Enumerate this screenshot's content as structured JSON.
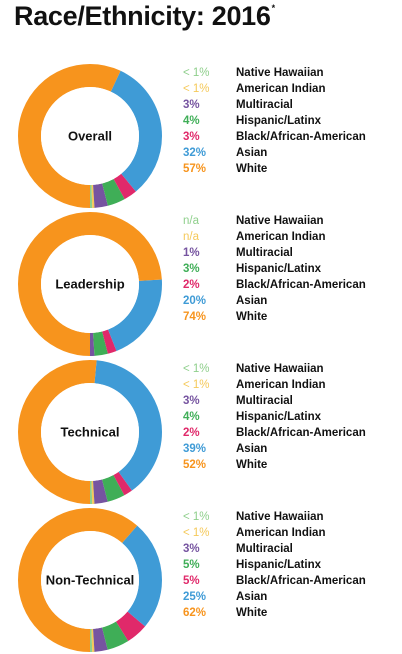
{
  "title": "Race/Ethnicity: 2016",
  "title_mark": "*",
  "colors": {
    "Native Hawaiian": "#8fcf8c",
    "American Indian": "#f5c95a",
    "Multiracial": "#7654a0",
    "Hispanic/Latinx": "#3fae57",
    "Black/African-American": "#e0296a",
    "Asian": "#3f9bd6",
    "White": "#f7941d"
  },
  "chart_data": [
    {
      "type": "pie",
      "center_label": "Overall",
      "categories": [
        "Native Hawaiian",
        "American Indian",
        "Multiracial",
        "Hispanic/Latinx",
        "Black/African-American",
        "Asian",
        "White"
      ],
      "labels": [
        "< 1%",
        "< 1%",
        "3%",
        "4%",
        "3%",
        "32%",
        "57%"
      ],
      "values": [
        0.5,
        0.5,
        3,
        4,
        3,
        32,
        57
      ]
    },
    {
      "type": "pie",
      "center_label": "Leadership",
      "categories": [
        "Native Hawaiian",
        "American Indian",
        "Multiracial",
        "Hispanic/Latinx",
        "Black/African-American",
        "Asian",
        "White"
      ],
      "labels": [
        "n/a",
        "n/a",
        "1%",
        "3%",
        "2%",
        "20%",
        "74%"
      ],
      "values": [
        0,
        0,
        1,
        3,
        2,
        20,
        74
      ]
    },
    {
      "type": "pie",
      "center_label": "Technical",
      "categories": [
        "Native Hawaiian",
        "American Indian",
        "Multiracial",
        "Hispanic/Latinx",
        "Black/African-American",
        "Asian",
        "White"
      ],
      "labels": [
        "< 1%",
        "< 1%",
        "3%",
        "4%",
        "2%",
        "39%",
        "52%"
      ],
      "values": [
        0.5,
        0.5,
        3,
        4,
        2,
        39,
        52
      ]
    },
    {
      "type": "pie",
      "center_label": "Non-Technical",
      "categories": [
        "Native Hawaiian",
        "American Indian",
        "Multiracial",
        "Hispanic/Latinx",
        "Black/African-American",
        "Asian",
        "White"
      ],
      "labels": [
        "< 1%",
        "< 1%",
        "3%",
        "5%",
        "5%",
        "25%",
        "62%"
      ],
      "values": [
        0.5,
        0.5,
        3,
        5,
        5,
        25,
        62
      ]
    }
  ]
}
